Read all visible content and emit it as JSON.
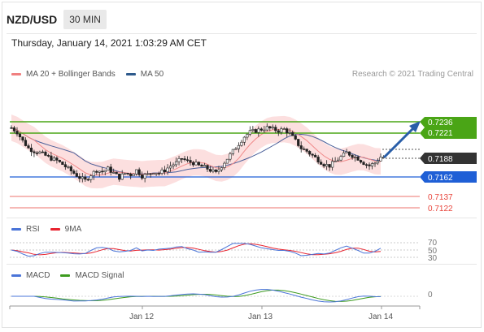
{
  "header": {
    "pair": "NZD/USD",
    "timeframe": "30 MIN",
    "datetime": "Thursday, January 14, 2021 1:03:29 AM CET"
  },
  "main_legend": {
    "items": [
      {
        "label": "MA 20 + Bollinger Bands",
        "color": "#f08080"
      },
      {
        "label": "MA 50",
        "color": "#2e5a8c"
      }
    ],
    "credit": "Research © 2021 Trading Central"
  },
  "rsi_legend": {
    "items": [
      {
        "label": "RSI",
        "color": "#4a74d8"
      },
      {
        "label": "9MA",
        "color": "#e8232f"
      }
    ]
  },
  "macd_legend": {
    "items": [
      {
        "label": "MACD",
        "color": "#4a74d8"
      },
      {
        "label": "MACD Signal",
        "color": "#3d9b1f"
      }
    ]
  },
  "price_levels": {
    "resistance2": "0.7236",
    "resistance1": "0.7221",
    "current": "0.7188",
    "pivot": "0.7162",
    "support1": "0.7137",
    "support2": "0.7122"
  },
  "rsi_levels": [
    "70",
    "50",
    "30"
  ],
  "macd_zero": "0",
  "x_axis": [
    "Jan 12",
    "Jan 13",
    "Jan 14"
  ],
  "colors": {
    "resistance": "#4aa516",
    "pivot": "#1f5fd6",
    "support": "#e8453c",
    "current": "#333333",
    "arrow": "#2a5ea8"
  },
  "chart_data": {
    "type": "candlestick",
    "ylim": [
      0.7112,
      0.7255
    ],
    "close_series": [
      0.7228,
      0.7222,
      0.721,
      0.72,
      0.7196,
      0.7194,
      0.719,
      0.7186,
      0.7183,
      0.7178,
      0.7172,
      0.7166,
      0.716,
      0.7156,
      0.7164,
      0.717,
      0.7168,
      0.7172,
      0.7166,
      0.716,
      0.7166,
      0.7164,
      0.717,
      0.7162,
      0.7164,
      0.7168,
      0.7166,
      0.717,
      0.7176,
      0.718,
      0.7186,
      0.7182,
      0.718,
      0.7176,
      0.7174,
      0.717,
      0.7166,
      0.7176,
      0.7186,
      0.7196,
      0.7206,
      0.7216,
      0.7222,
      0.7224,
      0.7226,
      0.7228,
      0.7226,
      0.7224,
      0.7226,
      0.722,
      0.721,
      0.72,
      0.7196,
      0.719,
      0.7184,
      0.7178,
      0.7176,
      0.7182,
      0.7188,
      0.7194,
      0.719,
      0.7186,
      0.718,
      0.7176,
      0.718,
      0.7188
    ]
  }
}
